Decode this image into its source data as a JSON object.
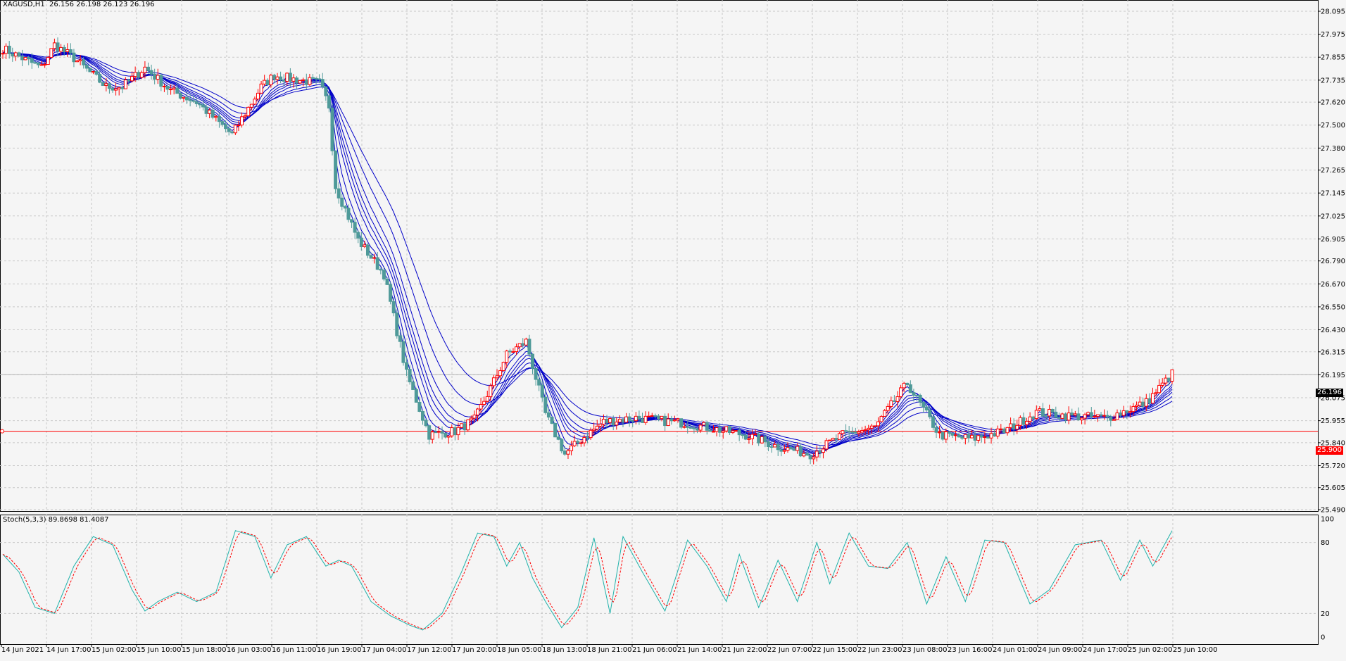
{
  "window": {
    "symbol_line": "XAGUSD,H1  26.156 26.198 26.123 26.196",
    "indicator_line": "Stoch(5,3,3) 89.8698 81.4087"
  },
  "price_axis": {
    "ticks": [
      "28.095",
      "27.975",
      "27.855",
      "27.735",
      "27.620",
      "27.500",
      "27.380",
      "27.265",
      "27.145",
      "27.025",
      "26.905",
      "26.790",
      "26.670",
      "26.550",
      "26.430",
      "26.315",
      "26.195",
      "26.075",
      "25.955",
      "25.840",
      "25.720",
      "25.605",
      "25.490"
    ],
    "current_price": "26.196",
    "hline_price": "25.900"
  },
  "stoch_axis": {
    "ticks": [
      "100",
      "80",
      "20",
      "0"
    ]
  },
  "time_axis": {
    "ticks": [
      "14 Jun 2021",
      "14 Jun 17:00",
      "15 Jun 02:00",
      "15 Jun 10:00",
      "15 Jun 18:00",
      "16 Jun 03:00",
      "16 Jun 11:00",
      "16 Jun 19:00",
      "17 Jun 04:00",
      "17 Jun 12:00",
      "17 Jun 20:00",
      "18 Jun 05:00",
      "18 Jun 13:00",
      "18 Jun 21:00",
      "21 Jun 06:00",
      "21 Jun 14:00",
      "21 Jun 22:00",
      "22 Jun 07:00",
      "22 Jun 15:00",
      "22 Jun 23:00",
      "23 Jun 08:00",
      "23 Jun 16:00",
      "24 Jun 01:00",
      "24 Jun 09:00",
      "24 Jun 17:00",
      "25 Jun 02:00",
      "25 Jun 10:00"
    ]
  },
  "colors": {
    "bg": "#f5f5f5",
    "grid": "#c8c8c8",
    "bull": "#ff0000",
    "bear": "#4f9a99",
    "ma": "#0000c8",
    "stoch_main": "#20b2aa",
    "stoch_signal": "#ff0000",
    "hline": "#ff0000"
  },
  "chart_data": {
    "type": "candlestick",
    "symbol": "XAGUSD",
    "timeframe": "H1",
    "ylim": [
      25.49,
      28.095
    ],
    "close_path": [
      [
        0,
        27.9
      ],
      [
        12,
        27.8
      ],
      [
        16,
        27.92
      ],
      [
        22,
        27.85
      ],
      [
        32,
        27.7
      ],
      [
        37,
        27.7
      ],
      [
        44,
        27.8
      ],
      [
        52,
        27.68
      ],
      [
        60,
        27.62
      ],
      [
        71,
        27.45
      ],
      [
        80,
        27.7
      ],
      [
        84,
        27.76
      ],
      [
        90,
        27.74
      ],
      [
        98,
        27.72
      ],
      [
        101,
        27.6
      ],
      [
        103,
        27.18
      ],
      [
        110,
        26.9
      ],
      [
        118,
        26.72
      ],
      [
        125,
        26.2
      ],
      [
        132,
        25.88
      ],
      [
        140,
        25.9
      ],
      [
        146,
        25.96
      ],
      [
        152,
        26.16
      ],
      [
        156,
        26.3
      ],
      [
        162,
        26.37
      ],
      [
        168,
        25.99
      ],
      [
        174,
        25.78
      ],
      [
        180,
        25.87
      ],
      [
        186,
        25.95
      ],
      [
        196,
        25.97
      ],
      [
        212,
        25.94
      ],
      [
        230,
        25.88
      ],
      [
        240,
        25.82
      ],
      [
        250,
        25.78
      ],
      [
        260,
        25.88
      ],
      [
        270,
        25.92
      ],
      [
        280,
        26.15
      ],
      [
        290,
        25.88
      ],
      [
        300,
        25.86
      ],
      [
        310,
        25.9
      ],
      [
        320,
        26.0
      ],
      [
        330,
        25.98
      ],
      [
        342,
        25.97
      ],
      [
        354,
        26.05
      ],
      [
        362,
        26.2
      ]
    ],
    "candle_count": 363,
    "moving_average_count": 8,
    "horizontal_line": 25.9,
    "current_price": 26.196,
    "stochastic": {
      "params": "5,3,3",
      "main_last": 89.8698,
      "signal_last": 81.4087,
      "ylim": [
        0,
        100
      ],
      "levels": [
        20,
        80
      ],
      "main_path": [
        [
          0,
          70
        ],
        [
          5,
          55
        ],
        [
          10,
          25
        ],
        [
          16,
          20
        ],
        [
          22,
          60
        ],
        [
          28,
          85
        ],
        [
          34,
          78
        ],
        [
          40,
          40
        ],
        [
          44,
          22
        ],
        [
          48,
          30
        ],
        [
          54,
          38
        ],
        [
          60,
          30
        ],
        [
          66,
          38
        ],
        [
          72,
          90
        ],
        [
          78,
          85
        ],
        [
          83,
          50
        ],
        [
          88,
          78
        ],
        [
          94,
          85
        ],
        [
          100,
          60
        ],
        [
          104,
          65
        ],
        [
          108,
          60
        ],
        [
          114,
          30
        ],
        [
          120,
          18
        ],
        [
          126,
          10
        ],
        [
          130,
          6
        ],
        [
          136,
          20
        ],
        [
          142,
          55
        ],
        [
          147,
          88
        ],
        [
          152,
          85
        ],
        [
          156,
          60
        ],
        [
          160,
          80
        ],
        [
          164,
          50
        ],
        [
          168,
          30
        ],
        [
          173,
          8
        ],
        [
          178,
          25
        ],
        [
          183,
          84
        ],
        [
          188,
          20
        ],
        [
          192,
          85
        ],
        [
          198,
          55
        ],
        [
          205,
          22
        ],
        [
          212,
          82
        ],
        [
          218,
          60
        ],
        [
          224,
          30
        ],
        [
          228,
          70
        ],
        [
          234,
          25
        ],
        [
          240,
          65
        ],
        [
          246,
          30
        ],
        [
          252,
          80
        ],
        [
          256,
          45
        ],
        [
          262,
          88
        ],
        [
          268,
          60
        ],
        [
          274,
          58
        ],
        [
          280,
          80
        ],
        [
          286,
          28
        ],
        [
          292,
          68
        ],
        [
          298,
          30
        ],
        [
          304,
          82
        ],
        [
          310,
          80
        ],
        [
          318,
          28
        ],
        [
          324,
          40
        ],
        [
          332,
          78
        ],
        [
          340,
          82
        ],
        [
          346,
          48
        ],
        [
          352,
          82
        ],
        [
          356,
          60
        ],
        [
          362,
          90
        ]
      ]
    }
  }
}
